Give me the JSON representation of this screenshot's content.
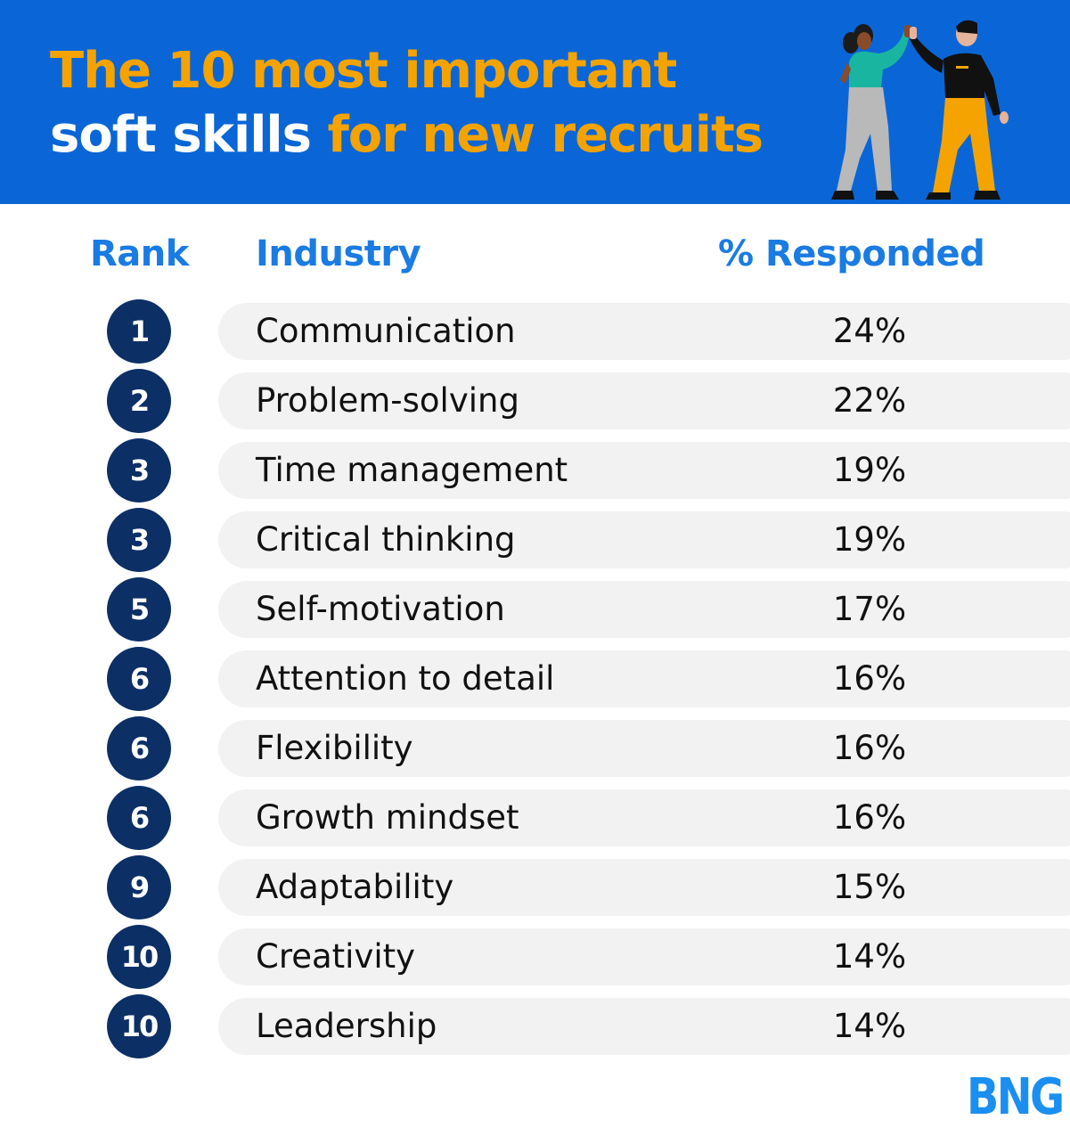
{
  "header": {
    "title_line1": "The 10 most important",
    "title_line2_white": "soft skills",
    "title_line2_orange": "for new recruits",
    "background_color": "#0a66d6",
    "accent_color": "#f5a300",
    "illustration": "two-people-high-five"
  },
  "table": {
    "columns": {
      "rank": "Rank",
      "industry": "Industry",
      "percent": "% Responded"
    },
    "rows": [
      {
        "rank": "1",
        "skill": "Communication",
        "percent": "24%"
      },
      {
        "rank": "2",
        "skill": "Problem-solving",
        "percent": "22%"
      },
      {
        "rank": "3",
        "skill": "Time management",
        "percent": "19%"
      },
      {
        "rank": "3",
        "skill": "Critical thinking",
        "percent": "19%"
      },
      {
        "rank": "5",
        "skill": "Self-motivation",
        "percent": "17%"
      },
      {
        "rank": "6",
        "skill": "Attention to detail",
        "percent": "16%"
      },
      {
        "rank": "6",
        "skill": "Flexibility",
        "percent": "16%"
      },
      {
        "rank": "6",
        "skill": "Growth mindset",
        "percent": "16%"
      },
      {
        "rank": "9",
        "skill": "Adaptability",
        "percent": "15%"
      },
      {
        "rank": "10",
        "skill": "Creativity",
        "percent": "14%"
      },
      {
        "rank": "10",
        "skill": "Leadership",
        "percent": "14%"
      }
    ],
    "badge_color": "#0c2f66",
    "bar_color": "#f2f2f2",
    "header_color": "#1a7be3"
  },
  "brand": {
    "logo": "BNG",
    "color": "#1a8ff0"
  }
}
